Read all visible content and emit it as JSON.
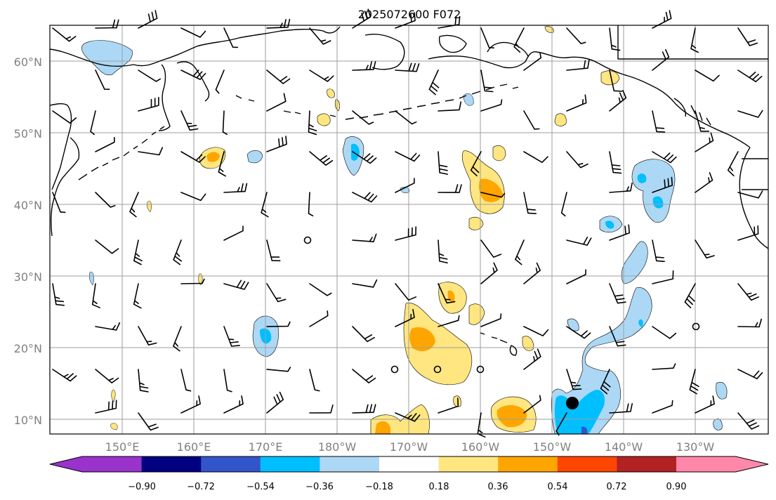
{
  "title": "2025072600 F072",
  "axes": {
    "lat_ticks": [
      "60°N",
      "50°N",
      "40°N",
      "30°N",
      "20°N",
      "10°N"
    ],
    "lon_ticks": [
      "150°E",
      "160°E",
      "170°E",
      "180°W",
      "170°W",
      "160°W",
      "150°W",
      "140°W",
      "130°W"
    ]
  },
  "colorbar": {
    "labels": [
      "−0.90",
      "−0.72",
      "−0.54",
      "−0.36",
      "−0.18",
      "0.18",
      "0.36",
      "0.54",
      "0.72",
      "0.90"
    ],
    "colors": [
      "#9933cc",
      "#000080",
      "#3355cc",
      "#00bfff",
      "#add8f5",
      "#ffffff",
      "#ffe680",
      "#ffa500",
      "#ff4500",
      "#b22222",
      "#ff88aa"
    ]
  },
  "marker": {
    "label": "storm-position",
    "color": "#000000"
  }
}
